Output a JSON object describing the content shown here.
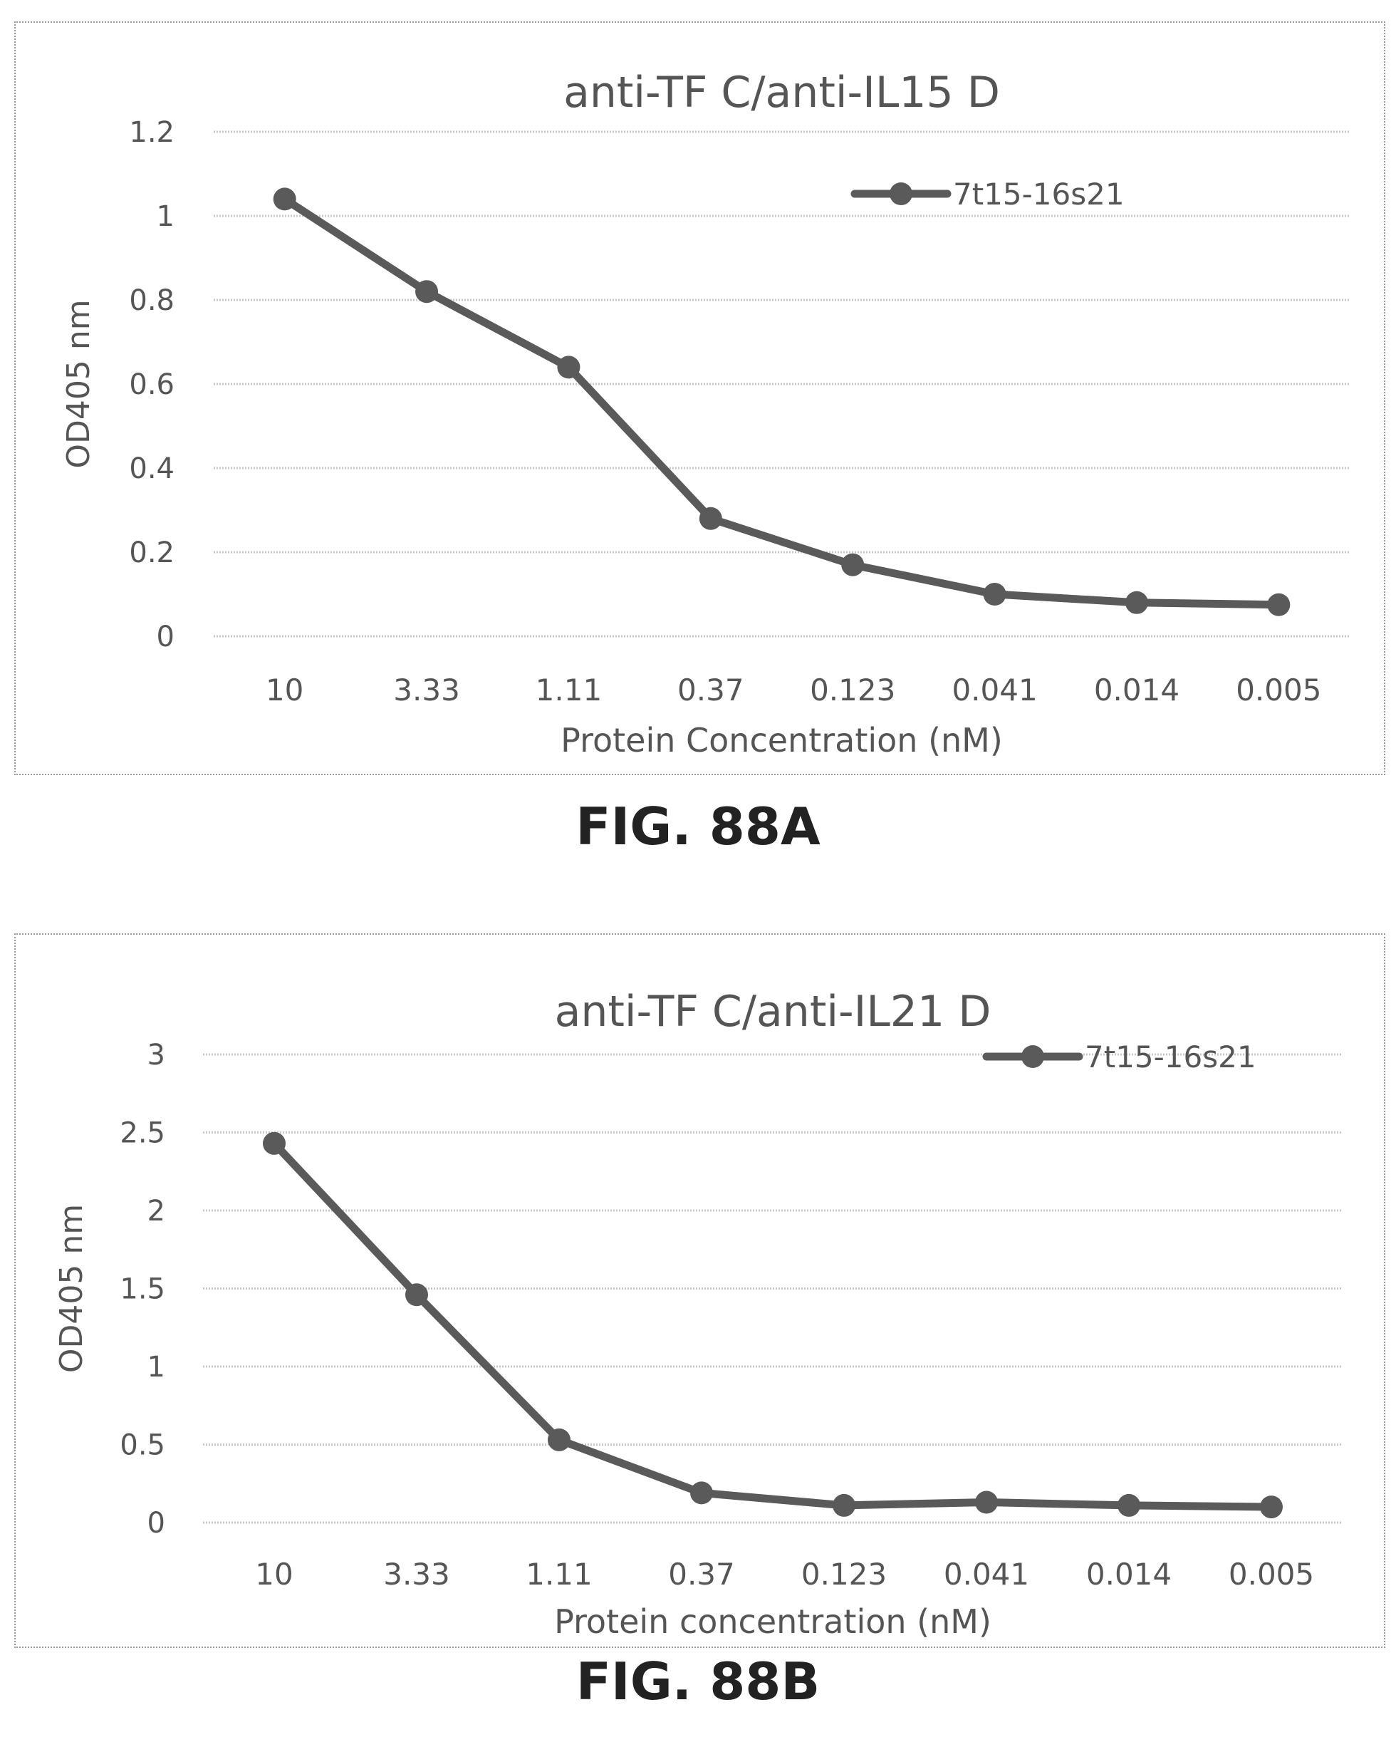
{
  "chart_data": [
    {
      "type": "line",
      "title": "anti-TF C/anti-IL15 D",
      "xlabel": "Protein Concentration (nM)",
      "ylabel": "OD405 nm",
      "categories": [
        "10",
        "3.33",
        "1.11",
        "0.37",
        "0.123",
        "0.041",
        "0.014",
        "0.005"
      ],
      "ylim": [
        0,
        1.2
      ],
      "yticks": [
        "0",
        "0.2",
        "0.4",
        "0.6",
        "0.8",
        "1",
        "1.2"
      ],
      "grid": true,
      "legend": "top-right",
      "series": [
        {
          "name": "7t15-16s21",
          "values": [
            1.04,
            0.82,
            0.64,
            0.28,
            0.17,
            0.1,
            0.08,
            0.075
          ]
        }
      ],
      "figure_label": "FIG. 88A",
      "colors": {
        "line": "#5a5a5a",
        "grid": "#c8c8c8",
        "text": "#555555"
      }
    },
    {
      "type": "line",
      "title": "anti-TF C/anti-IL21 D",
      "xlabel": "Protein concentration (nM)",
      "ylabel": "OD405 nm",
      "categories": [
        "10",
        "3.33",
        "1.11",
        "0.37",
        "0.123",
        "0.041",
        "0.014",
        "0.005"
      ],
      "ylim": [
        0,
        3
      ],
      "yticks": [
        "0",
        "0.5",
        "1",
        "1.5",
        "2",
        "2.5",
        "3"
      ],
      "grid": true,
      "legend": "top-right",
      "series": [
        {
          "name": "7t15-16s21",
          "values": [
            2.43,
            1.46,
            0.53,
            0.19,
            0.11,
            0.13,
            0.11,
            0.1
          ]
        }
      ],
      "figure_label": "FIG. 88B",
      "colors": {
        "line": "#5a5a5a",
        "grid": "#c8c8c8",
        "text": "#555555"
      }
    }
  ]
}
